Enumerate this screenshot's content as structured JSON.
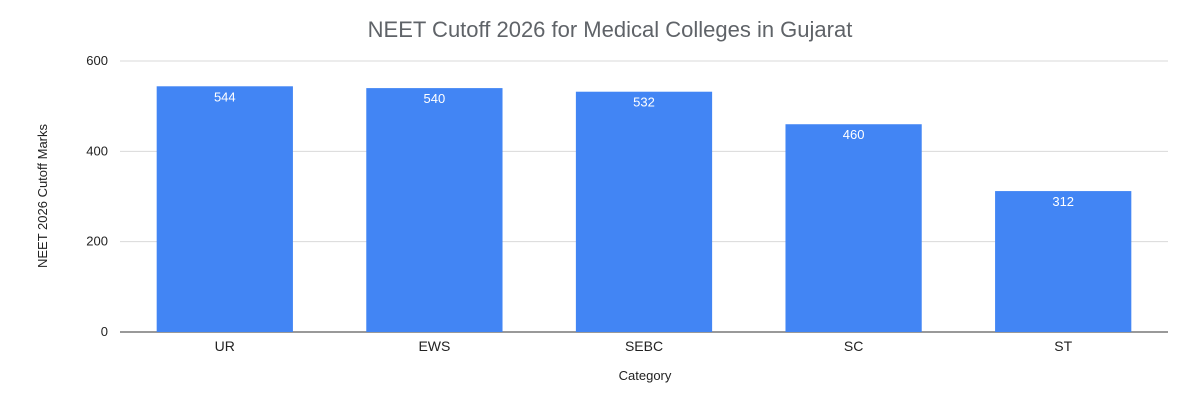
{
  "chart_data": {
    "type": "bar",
    "title": "NEET Cutoff 2026 for Medical Colleges in Gujarat",
    "xlabel": "Category",
    "ylabel": "NEET 2026 Cutoff Marks",
    "categories": [
      "UR",
      "EWS",
      "SEBC",
      "SC",
      "ST"
    ],
    "values": [
      544,
      540,
      532,
      460,
      312
    ],
    "data_labels": [
      "544",
      "540",
      "532",
      "460",
      "312"
    ],
    "ylim": [
      0,
      600
    ],
    "yticks": [
      0,
      200,
      400,
      600
    ],
    "grid": true,
    "bar_color": "#4285f4",
    "legend": "none"
  }
}
